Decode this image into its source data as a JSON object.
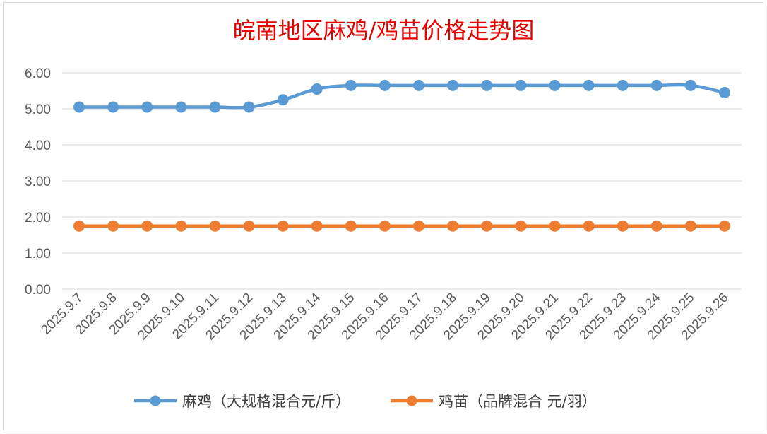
{
  "chart_data": {
    "type": "line",
    "title": "皖南地区麻鸡/鸡苗价格走势图",
    "categories": [
      "2025.9.7",
      "2025.9.8",
      "2025.9.9",
      "2025.9.10",
      "2025.9.11",
      "2025.9.12",
      "2025.9.13",
      "2025.9.14",
      "2025.9.15",
      "2025.9.16",
      "2025.9.17",
      "2025.9.18",
      "2025.9.19",
      "2025.9.20",
      "2025.9.21",
      "2025.9.22",
      "2025.9.23",
      "2025.9.24",
      "2025.9.25",
      "2025.9.26"
    ],
    "series": [
      {
        "name": "麻鸡（大规格混合元/斤）",
        "color": "#5b9bd5",
        "smooth": true,
        "values": [
          5.05,
          5.05,
          5.05,
          5.05,
          5.05,
          5.05,
          5.25,
          5.55,
          5.65,
          5.65,
          5.65,
          5.65,
          5.65,
          5.65,
          5.65,
          5.65,
          5.65,
          5.65,
          5.65,
          5.45
        ]
      },
      {
        "name": "鸡苗（品牌混合 元/羽）",
        "color": "#ed7d31",
        "smooth": false,
        "values": [
          1.75,
          1.75,
          1.75,
          1.75,
          1.75,
          1.75,
          1.75,
          1.75,
          1.75,
          1.75,
          1.75,
          1.75,
          1.75,
          1.75,
          1.75,
          1.75,
          1.75,
          1.75,
          1.75,
          1.75
        ]
      }
    ],
    "ylim": [
      0,
      6
    ],
    "yticks": [
      "0.00",
      "1.00",
      "2.00",
      "3.00",
      "4.00",
      "5.00",
      "6.00"
    ],
    "xlabel": "",
    "ylabel": "",
    "grid": true,
    "legend_position": "bottom"
  }
}
